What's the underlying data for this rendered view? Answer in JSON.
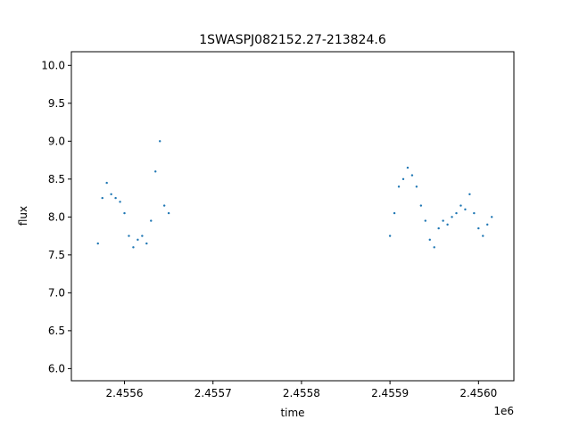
{
  "chart_data": {
    "type": "scatter",
    "title": "1SWASPJ082152.27-213824.6",
    "xlabel": "time",
    "ylabel": "flux",
    "x_offset_label": "1e6",
    "xlim": [
      2.45554,
      2.45604
    ],
    "ylim": [
      5.84,
      10.18
    ],
    "x_ticks": [
      2.4556,
      2.4557,
      2.4558,
      2.4559,
      2.456
    ],
    "x_tick_labels": [
      "2.4556",
      "2.4557",
      "2.4558",
      "2.4559",
      "2.4560"
    ],
    "y_ticks": [
      6.0,
      6.5,
      7.0,
      7.5,
      8.0,
      8.5,
      9.0,
      9.5,
      10.0
    ],
    "y_tick_labels": [
      "6.0",
      "6.5",
      "7.0",
      "7.5",
      "8.0",
      "8.5",
      "9.0",
      "9.5",
      "10.0"
    ],
    "grid": false,
    "marker_color": "#1f77b4",
    "series": [
      {
        "x": [
          2.45557,
          2.455575,
          2.45558,
          2.455585,
          2.45559,
          2.455595,
          2.4556,
          2.455605,
          2.45561,
          2.455615,
          2.45562,
          2.455625,
          2.45563,
          2.455635,
          2.45564,
          2.455645,
          2.45565,
          2.4559,
          2.455905,
          2.45591,
          2.455915,
          2.45592,
          2.455925,
          2.45593,
          2.455935,
          2.45594,
          2.455945,
          2.45595,
          2.455955,
          2.45596,
          2.455965,
          2.45597,
          2.455975,
          2.45598,
          2.455985,
          2.45599,
          2.455995,
          2.456,
          2.456005,
          2.45601,
          2.456015
        ],
        "y": [
          7.65,
          8.25,
          8.45,
          8.3,
          8.25,
          8.2,
          8.05,
          7.75,
          7.6,
          7.7,
          7.75,
          7.65,
          7.95,
          8.6,
          9.0,
          8.15,
          8.05,
          7.75,
          8.05,
          8.4,
          8.5,
          8.65,
          8.55,
          8.4,
          8.15,
          7.95,
          7.7,
          7.6,
          7.85,
          7.95,
          7.9,
          8.0,
          8.05,
          8.15,
          8.1,
          8.3,
          8.05,
          7.85,
          7.75,
          7.9,
          8.0
        ]
      }
    ]
  }
}
